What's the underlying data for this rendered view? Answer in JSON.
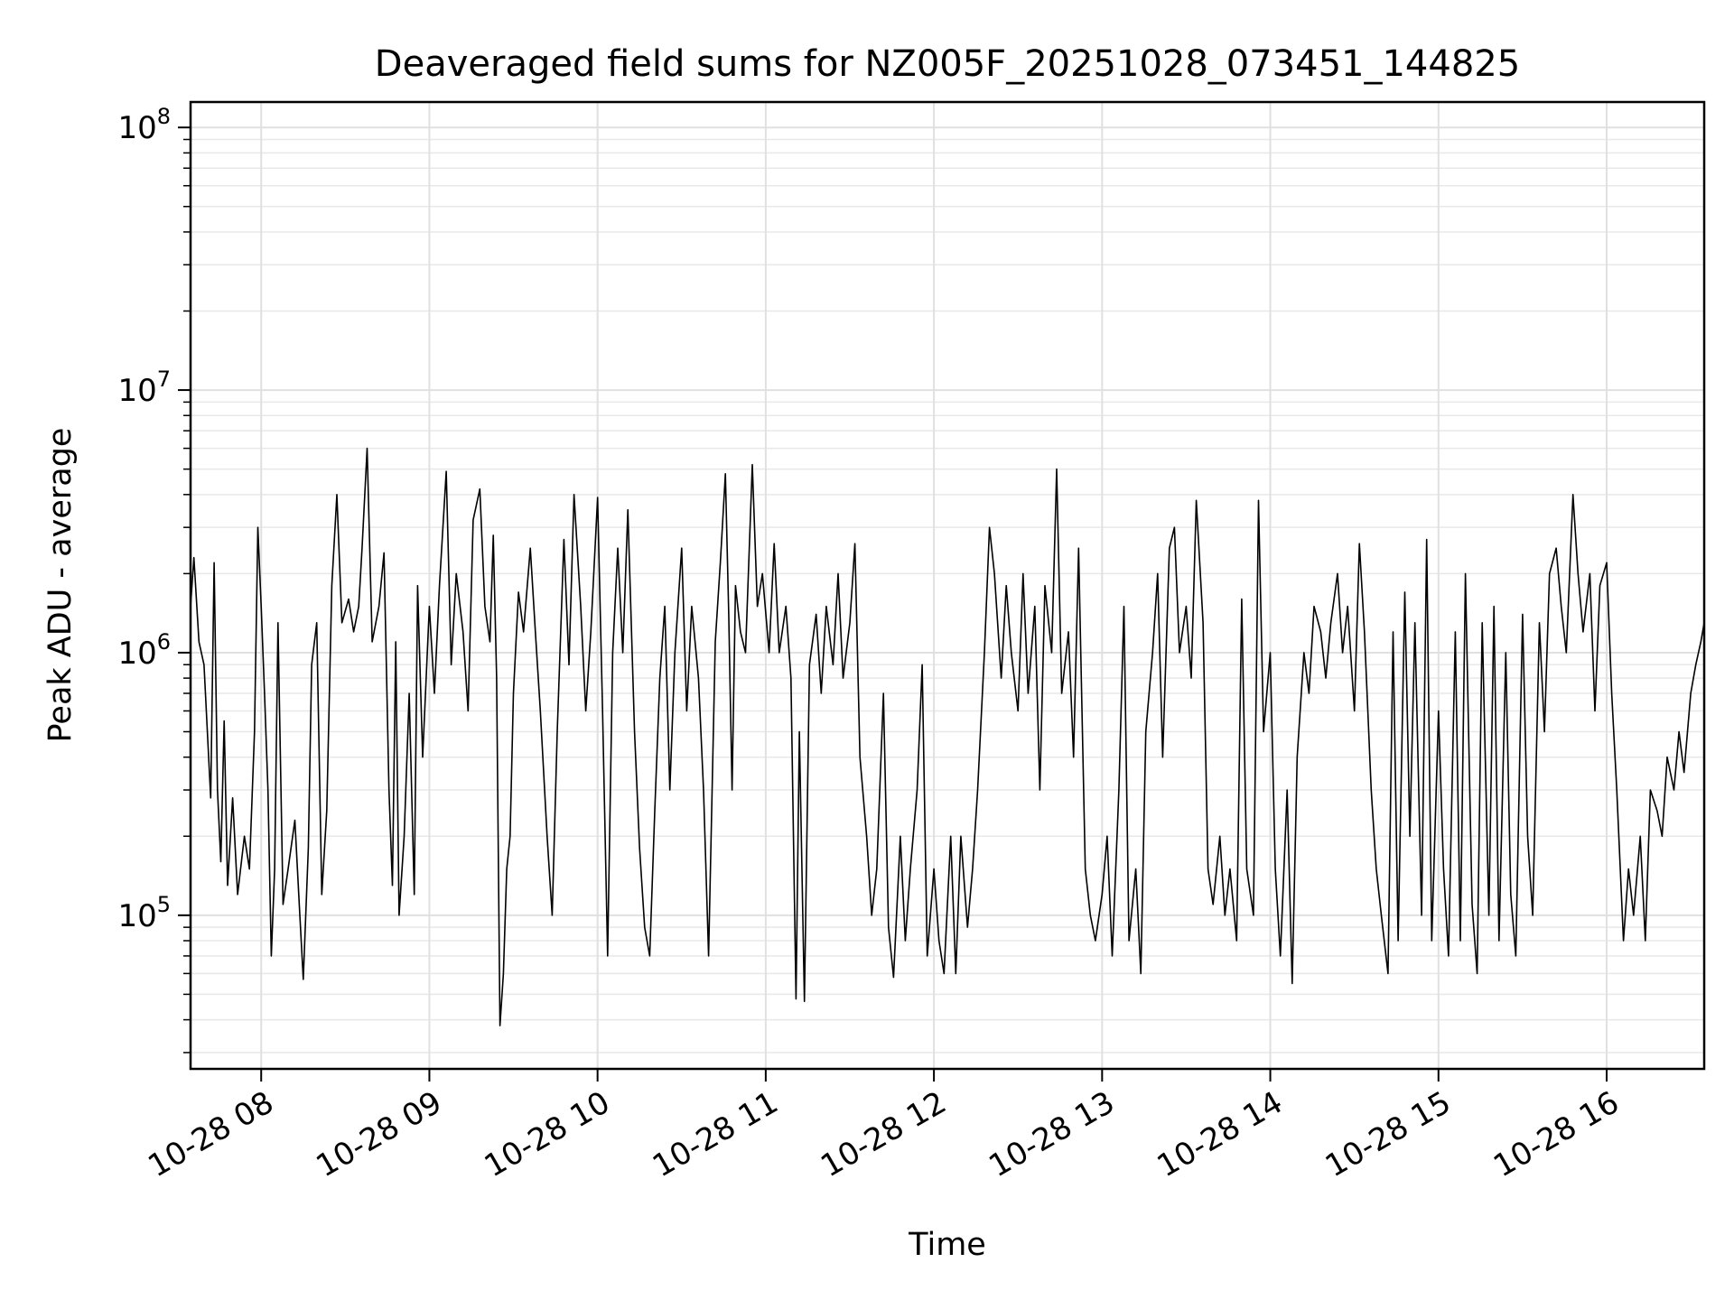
{
  "chart_data": {
    "type": "line",
    "title": "Deaveraged field sums for NZ005F_20251028_073451_144825",
    "xlabel": "Time",
    "ylabel": "Peak ADU - average",
    "yscale": "log",
    "ylim": [
      26000,
      125000000
    ],
    "y_ticks": [
      {
        "value": 100000,
        "base": "10",
        "exp": "5"
      },
      {
        "value": 1000000,
        "base": "10",
        "exp": "6"
      },
      {
        "value": 10000000,
        "base": "10",
        "exp": "7"
      },
      {
        "value": 100000000,
        "base": "10",
        "exp": "8"
      }
    ],
    "xlim_hours": [
      7.58,
      16.58
    ],
    "x_ticks": [
      {
        "hour": 8,
        "label": "10-28 08"
      },
      {
        "hour": 9,
        "label": "10-28 09"
      },
      {
        "hour": 10,
        "label": "10-28 10"
      },
      {
        "hour": 11,
        "label": "10-28 11"
      },
      {
        "hour": 12,
        "label": "10-28 12"
      },
      {
        "hour": 13,
        "label": "10-28 13"
      },
      {
        "hour": 14,
        "label": "10-28 14"
      },
      {
        "hour": 15,
        "label": "10-28 15"
      },
      {
        "hour": 16,
        "label": "10-28 16"
      }
    ],
    "grid": true,
    "series": [
      {
        "name": "Peak ADU - average",
        "color": "#000000",
        "points": [
          [
            7.58,
            1500000
          ],
          [
            7.6,
            2300000
          ],
          [
            7.63,
            1100000
          ],
          [
            7.66,
            900000
          ],
          [
            7.68,
            500000
          ],
          [
            7.7,
            280000
          ],
          [
            7.72,
            2200000
          ],
          [
            7.74,
            300000
          ],
          [
            7.76,
            160000
          ],
          [
            7.78,
            550000
          ],
          [
            7.8,
            130000
          ],
          [
            7.83,
            280000
          ],
          [
            7.86,
            120000
          ],
          [
            7.9,
            200000
          ],
          [
            7.93,
            150000
          ],
          [
            7.96,
            500000
          ],
          [
            7.98,
            3000000
          ],
          [
            8.0,
            1500000
          ],
          [
            8.02,
            700000
          ],
          [
            8.04,
            300000
          ],
          [
            8.06,
            70000
          ],
          [
            8.08,
            150000
          ],
          [
            8.1,
            1300000
          ],
          [
            8.13,
            110000
          ],
          [
            8.16,
            150000
          ],
          [
            8.2,
            230000
          ],
          [
            8.23,
            100000
          ],
          [
            8.25,
            57000
          ],
          [
            8.28,
            180000
          ],
          [
            8.3,
            900000
          ],
          [
            8.33,
            1300000
          ],
          [
            8.36,
            120000
          ],
          [
            8.39,
            250000
          ],
          [
            8.42,
            1800000
          ],
          [
            8.45,
            4000000
          ],
          [
            8.48,
            1300000
          ],
          [
            8.52,
            1600000
          ],
          [
            8.55,
            1200000
          ],
          [
            8.58,
            1500000
          ],
          [
            8.6,
            2500000
          ],
          [
            8.63,
            6000000
          ],
          [
            8.66,
            1100000
          ],
          [
            8.7,
            1500000
          ],
          [
            8.73,
            2400000
          ],
          [
            8.76,
            300000
          ],
          [
            8.78,
            130000
          ],
          [
            8.8,
            1100000
          ],
          [
            8.82,
            100000
          ],
          [
            8.85,
            200000
          ],
          [
            8.88,
            700000
          ],
          [
            8.91,
            120000
          ],
          [
            8.93,
            1800000
          ],
          [
            8.96,
            400000
          ],
          [
            9.0,
            1500000
          ],
          [
            9.03,
            700000
          ],
          [
            9.06,
            1800000
          ],
          [
            9.1,
            4900000
          ],
          [
            9.13,
            900000
          ],
          [
            9.16,
            2000000
          ],
          [
            9.2,
            1200000
          ],
          [
            9.23,
            600000
          ],
          [
            9.26,
            3200000
          ],
          [
            9.3,
            4200000
          ],
          [
            9.33,
            1500000
          ],
          [
            9.36,
            1100000
          ],
          [
            9.38,
            2800000
          ],
          [
            9.4,
            800000
          ],
          [
            9.42,
            38000
          ],
          [
            9.44,
            60000
          ],
          [
            9.46,
            150000
          ],
          [
            9.48,
            200000
          ],
          [
            9.5,
            700000
          ],
          [
            9.53,
            1700000
          ],
          [
            9.56,
            1200000
          ],
          [
            9.6,
            2500000
          ],
          [
            9.63,
            1200000
          ],
          [
            9.66,
            600000
          ],
          [
            9.7,
            200000
          ],
          [
            9.73,
            100000
          ],
          [
            9.76,
            500000
          ],
          [
            9.8,
            2700000
          ],
          [
            9.83,
            900000
          ],
          [
            9.86,
            4000000
          ],
          [
            9.9,
            1500000
          ],
          [
            9.93,
            600000
          ],
          [
            9.96,
            1200000
          ],
          [
            10.0,
            3900000
          ],
          [
            10.03,
            600000
          ],
          [
            10.06,
            70000
          ],
          [
            10.09,
            1000000
          ],
          [
            10.12,
            2500000
          ],
          [
            10.15,
            1000000
          ],
          [
            10.18,
            3500000
          ],
          [
            10.22,
            500000
          ],
          [
            10.25,
            180000
          ],
          [
            10.28,
            90000
          ],
          [
            10.31,
            70000
          ],
          [
            10.34,
            250000
          ],
          [
            10.37,
            800000
          ],
          [
            10.4,
            1500000
          ],
          [
            10.43,
            300000
          ],
          [
            10.46,
            1000000
          ],
          [
            10.5,
            2500000
          ],
          [
            10.53,
            600000
          ],
          [
            10.56,
            1500000
          ],
          [
            10.6,
            800000
          ],
          [
            10.63,
            300000
          ],
          [
            10.66,
            70000
          ],
          [
            10.7,
            1100000
          ],
          [
            10.73,
            2200000
          ],
          [
            10.76,
            4800000
          ],
          [
            10.78,
            1400000
          ],
          [
            10.8,
            300000
          ],
          [
            10.82,
            1800000
          ],
          [
            10.85,
            1200000
          ],
          [
            10.88,
            1000000
          ],
          [
            10.92,
            5200000
          ],
          [
            10.95,
            1500000
          ],
          [
            10.98,
            2000000
          ],
          [
            11.02,
            1000000
          ],
          [
            11.05,
            2600000
          ],
          [
            11.08,
            1000000
          ],
          [
            11.12,
            1500000
          ],
          [
            11.15,
            800000
          ],
          [
            11.18,
            48000
          ],
          [
            11.2,
            500000
          ],
          [
            11.23,
            47000
          ],
          [
            11.26,
            900000
          ],
          [
            11.3,
            1400000
          ],
          [
            11.33,
            700000
          ],
          [
            11.36,
            1500000
          ],
          [
            11.4,
            900000
          ],
          [
            11.43,
            2000000
          ],
          [
            11.46,
            800000
          ],
          [
            11.5,
            1300000
          ],
          [
            11.53,
            2600000
          ],
          [
            11.56,
            400000
          ],
          [
            11.6,
            200000
          ],
          [
            11.63,
            100000
          ],
          [
            11.66,
            150000
          ],
          [
            11.7,
            700000
          ],
          [
            11.73,
            90000
          ],
          [
            11.76,
            58000
          ],
          [
            11.8,
            200000
          ],
          [
            11.83,
            80000
          ],
          [
            11.86,
            150000
          ],
          [
            11.9,
            300000
          ],
          [
            11.93,
            900000
          ],
          [
            11.96,
            70000
          ],
          [
            12.0,
            150000
          ],
          [
            12.03,
            80000
          ],
          [
            12.06,
            60000
          ],
          [
            12.1,
            200000
          ],
          [
            12.13,
            60000
          ],
          [
            12.16,
            200000
          ],
          [
            12.2,
            90000
          ],
          [
            12.23,
            150000
          ],
          [
            12.26,
            300000
          ],
          [
            12.3,
            1000000
          ],
          [
            12.33,
            3000000
          ],
          [
            12.36,
            2000000
          ],
          [
            12.4,
            800000
          ],
          [
            12.43,
            1800000
          ],
          [
            12.46,
            1000000
          ],
          [
            12.5,
            600000
          ],
          [
            12.53,
            2000000
          ],
          [
            12.56,
            700000
          ],
          [
            12.6,
            1500000
          ],
          [
            12.63,
            300000
          ],
          [
            12.66,
            1800000
          ],
          [
            12.7,
            1000000
          ],
          [
            12.73,
            5000000
          ],
          [
            12.76,
            700000
          ],
          [
            12.8,
            1200000
          ],
          [
            12.83,
            400000
          ],
          [
            12.86,
            2500000
          ],
          [
            12.9,
            150000
          ],
          [
            12.93,
            100000
          ],
          [
            12.96,
            80000
          ],
          [
            13.0,
            120000
          ],
          [
            13.03,
            200000
          ],
          [
            13.06,
            70000
          ],
          [
            13.1,
            300000
          ],
          [
            13.13,
            1500000
          ],
          [
            13.16,
            80000
          ],
          [
            13.2,
            150000
          ],
          [
            13.23,
            60000
          ],
          [
            13.26,
            500000
          ],
          [
            13.3,
            1000000
          ],
          [
            13.33,
            2000000
          ],
          [
            13.36,
            400000
          ],
          [
            13.4,
            2500000
          ],
          [
            13.43,
            3000000
          ],
          [
            13.46,
            1000000
          ],
          [
            13.5,
            1500000
          ],
          [
            13.53,
            800000
          ],
          [
            13.56,
            3800000
          ],
          [
            13.6,
            1300000
          ],
          [
            13.63,
            150000
          ],
          [
            13.66,
            110000
          ],
          [
            13.7,
            200000
          ],
          [
            13.73,
            100000
          ],
          [
            13.76,
            150000
          ],
          [
            13.8,
            80000
          ],
          [
            13.83,
            1600000
          ],
          [
            13.86,
            150000
          ],
          [
            13.9,
            100000
          ],
          [
            13.93,
            3800000
          ],
          [
            13.96,
            500000
          ],
          [
            14.0,
            1000000
          ],
          [
            14.03,
            150000
          ],
          [
            14.06,
            70000
          ],
          [
            14.1,
            300000
          ],
          [
            14.13,
            55000
          ],
          [
            14.16,
            400000
          ],
          [
            14.2,
            1000000
          ],
          [
            14.23,
            700000
          ],
          [
            14.26,
            1500000
          ],
          [
            14.3,
            1200000
          ],
          [
            14.33,
            800000
          ],
          [
            14.36,
            1300000
          ],
          [
            14.4,
            2000000
          ],
          [
            14.43,
            1000000
          ],
          [
            14.46,
            1500000
          ],
          [
            14.5,
            600000
          ],
          [
            14.53,
            2600000
          ],
          [
            14.56,
            1200000
          ],
          [
            14.6,
            300000
          ],
          [
            14.63,
            150000
          ],
          [
            14.66,
            100000
          ],
          [
            14.7,
            60000
          ],
          [
            14.73,
            1200000
          ],
          [
            14.76,
            80000
          ],
          [
            14.8,
            1700000
          ],
          [
            14.83,
            200000
          ],
          [
            14.86,
            1300000
          ],
          [
            14.9,
            100000
          ],
          [
            14.93,
            2700000
          ],
          [
            14.96,
            80000
          ],
          [
            15.0,
            600000
          ],
          [
            15.03,
            150000
          ],
          [
            15.06,
            70000
          ],
          [
            15.1,
            1200000
          ],
          [
            15.13,
            80000
          ],
          [
            15.16,
            2000000
          ],
          [
            15.2,
            110000
          ],
          [
            15.23,
            60000
          ],
          [
            15.26,
            1300000
          ],
          [
            15.3,
            100000
          ],
          [
            15.33,
            1500000
          ],
          [
            15.36,
            80000
          ],
          [
            15.4,
            1000000
          ],
          [
            15.43,
            120000
          ],
          [
            15.46,
            70000
          ],
          [
            15.5,
            1400000
          ],
          [
            15.53,
            200000
          ],
          [
            15.56,
            100000
          ],
          [
            15.6,
            1300000
          ],
          [
            15.63,
            500000
          ],
          [
            15.66,
            2000000
          ],
          [
            15.7,
            2500000
          ],
          [
            15.73,
            1500000
          ],
          [
            15.76,
            1000000
          ],
          [
            15.8,
            4000000
          ],
          [
            15.83,
            2000000
          ],
          [
            15.86,
            1200000
          ],
          [
            15.9,
            2000000
          ],
          [
            15.93,
            600000
          ],
          [
            15.96,
            1800000
          ],
          [
            16.0,
            2200000
          ],
          [
            16.03,
            700000
          ],
          [
            16.06,
            300000
          ],
          [
            16.1,
            80000
          ],
          [
            16.13,
            150000
          ],
          [
            16.16,
            100000
          ],
          [
            16.2,
            200000
          ],
          [
            16.23,
            80000
          ],
          [
            16.26,
            300000
          ],
          [
            16.3,
            250000
          ],
          [
            16.33,
            200000
          ],
          [
            16.36,
            400000
          ],
          [
            16.4,
            300000
          ],
          [
            16.43,
            500000
          ],
          [
            16.46,
            350000
          ],
          [
            16.5,
            700000
          ],
          [
            16.53,
            900000
          ],
          [
            16.56,
            1100000
          ],
          [
            16.58,
            1300000
          ]
        ]
      }
    ]
  }
}
